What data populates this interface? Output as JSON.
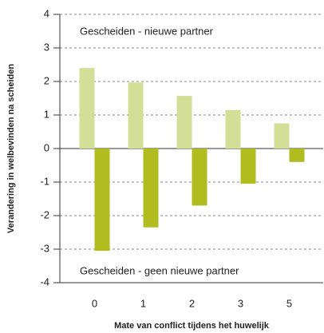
{
  "chart_data": {
    "type": "bar",
    "x_label": "Mate van conflict tijdens het huwelijk",
    "y_label": "Verandering in welbevinden na scheiden",
    "categories": [
      "0",
      "1",
      "2",
      "3",
      "5"
    ],
    "series": [
      {
        "name": "Gescheiden - nieuwe partner",
        "color": "#d3de97",
        "values": [
          2.4,
          1.97,
          1.57,
          1.15,
          0.75
        ]
      },
      {
        "name": "Gescheiden - geen nieuwe partner",
        "color": "#b1bc1f",
        "values": [
          -3.05,
          -2.35,
          -1.7,
          -1.05,
          -0.4
        ]
      }
    ],
    "ylim": [
      -4,
      4
    ],
    "yticks": [
      -4,
      -3,
      -2,
      -1,
      0,
      1,
      2,
      3,
      4
    ],
    "grid": true
  }
}
